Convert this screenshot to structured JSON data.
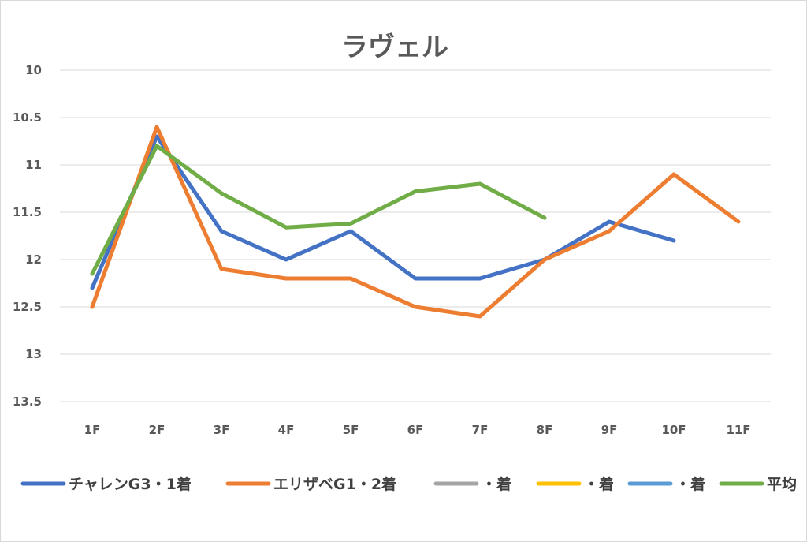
{
  "chart_data": {
    "type": "line",
    "title": "ラヴェル",
    "xlabel": "",
    "ylabel": "",
    "categories": [
      "1F",
      "2F",
      "3F",
      "4F",
      "5F",
      "6F",
      "7F",
      "8F",
      "9F",
      "10F",
      "11F"
    ],
    "ylim": [
      10,
      13.5
    ],
    "y_reversed": true,
    "y_ticks": [
      "10",
      "10.5",
      "11",
      "11.5",
      "12",
      "12.5",
      "13",
      "13.5"
    ],
    "grid": true,
    "legend_position": "bottom",
    "series": [
      {
        "name": "チャレンG3・1着",
        "color": "#4472C4",
        "values": [
          12.3,
          10.7,
          11.7,
          12.0,
          11.7,
          12.2,
          12.2,
          12.0,
          11.6,
          11.8,
          null
        ]
      },
      {
        "name": "エリザベG1・2着",
        "color": "#ED7D31",
        "values": [
          12.5,
          10.6,
          12.1,
          12.2,
          12.2,
          12.5,
          12.6,
          12.0,
          11.7,
          11.1,
          11.6
        ]
      },
      {
        "name": "・着",
        "color": "#A5A5A5",
        "values": [
          null,
          null,
          null,
          null,
          null,
          null,
          null,
          null,
          null,
          null,
          null
        ]
      },
      {
        "name": "・着",
        "color": "#FFC000",
        "values": [
          null,
          null,
          null,
          null,
          null,
          null,
          null,
          null,
          null,
          null,
          null
        ]
      },
      {
        "name": "・着",
        "color": "#5B9BD5",
        "values": [
          null,
          null,
          null,
          null,
          null,
          null,
          null,
          null,
          null,
          null,
          null
        ]
      },
      {
        "name": "平均",
        "color": "#70AD47",
        "values": [
          12.15,
          10.8,
          11.3,
          11.66,
          11.62,
          11.28,
          11.2,
          11.56,
          null,
          null,
          null
        ]
      }
    ]
  }
}
